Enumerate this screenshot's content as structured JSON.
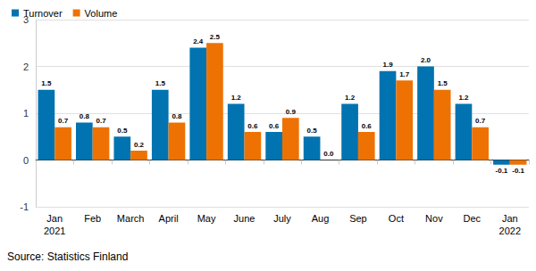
{
  "chart_data": {
    "type": "bar",
    "source": "Source: Statistics Finland",
    "categories": [
      "Jan\n2021",
      "Feb",
      "March",
      "April",
      "May",
      "June",
      "July",
      "Aug",
      "Sep",
      "Oct",
      "Nov",
      "Dec",
      "Jan\n2022"
    ],
    "series": [
      {
        "name": "Turnover",
        "color": "#0073b0",
        "values": [
          1.5,
          0.8,
          0.5,
          1.5,
          2.4,
          1.2,
          0.6,
          0.5,
          1.2,
          1.9,
          2.0,
          1.2,
          -0.1
        ],
        "value_labels": [
          "1.5",
          "0.8",
          "0.5",
          "1.5",
          "2.4",
          "1.2",
          "0.6",
          "0.5",
          "1.2",
          "1.9",
          "2.0",
          "1.2",
          "-0.1"
        ]
      },
      {
        "name": "Volume",
        "color": "#ee7203",
        "values": [
          0.7,
          0.7,
          0.2,
          0.8,
          2.5,
          0.6,
          0.9,
          0.0,
          0.6,
          1.7,
          1.5,
          0.7,
          -0.1
        ],
        "value_labels": [
          "0.7",
          "0.7",
          "0.2",
          "0.8",
          "2.5",
          "0.6",
          "0.9",
          "0.0",
          "0.6",
          "1.7",
          "1.5",
          "0.7",
          "-0.1"
        ]
      }
    ],
    "ylim": [
      -1,
      3
    ],
    "yticks": [
      -1,
      0,
      1,
      2,
      3
    ],
    "grid": true,
    "legend": "top-left",
    "data_labels": true
  }
}
